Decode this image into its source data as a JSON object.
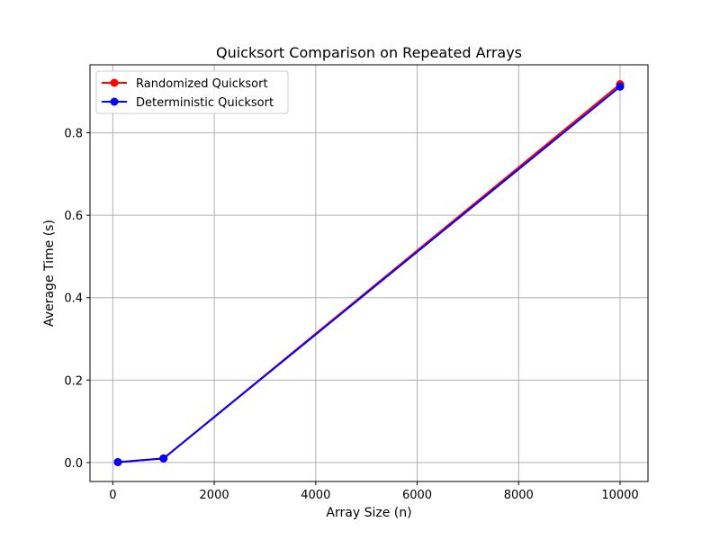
{
  "chart_data": {
    "type": "line",
    "title": "Quicksort Comparison on Repeated Arrays",
    "xlabel": "Array Size (n)",
    "ylabel": "Average Time (s)",
    "x": [
      100,
      1000,
      10000
    ],
    "series": [
      {
        "name": "Randomized Quicksort",
        "color": "#ff0000",
        "values": [
          0.001,
          0.01,
          0.918
        ]
      },
      {
        "name": "Deterministic Quicksort",
        "color": "#0000ff",
        "values": [
          0.001,
          0.01,
          0.912
        ]
      }
    ],
    "xlim": [
      -450,
      10550
    ],
    "ylim": [
      -0.046,
      0.965
    ],
    "xticks": [
      0,
      2000,
      4000,
      6000,
      8000,
      10000
    ],
    "xtick_labels": [
      "0",
      "2000",
      "4000",
      "6000",
      "8000",
      "10000"
    ],
    "yticks": [
      0.0,
      0.2,
      0.4,
      0.6,
      0.8
    ],
    "ytick_labels": [
      "0.0",
      "0.2",
      "0.4",
      "0.6",
      "0.8"
    ],
    "grid": true,
    "legend_position": "top-left"
  }
}
